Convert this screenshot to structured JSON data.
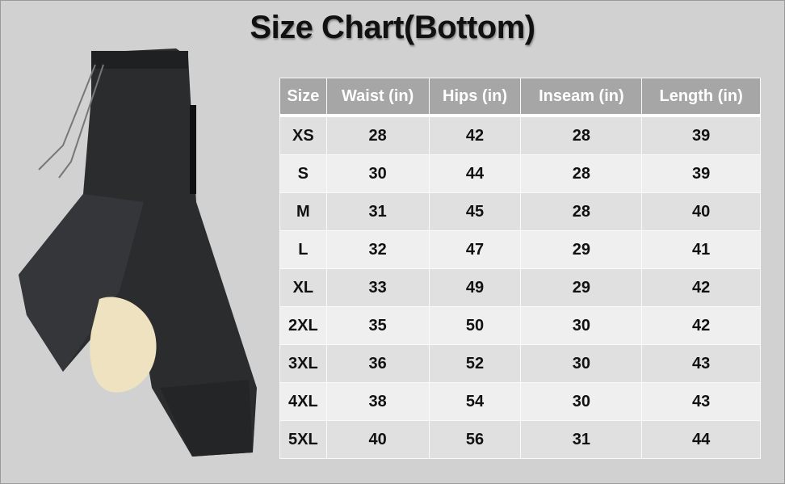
{
  "title": "Size Chart(Bottom)",
  "table": {
    "headers": [
      "Size",
      "Waist (in)",
      "Hips (in)",
      "Inseam (in)",
      "Length (in)"
    ],
    "rows": [
      [
        "XS",
        "28",
        "42",
        "28",
        "39"
      ],
      [
        "S",
        "30",
        "44",
        "28",
        "39"
      ],
      [
        "M",
        "31",
        "45",
        "28",
        "40"
      ],
      [
        "L",
        "32",
        "47",
        "29",
        "41"
      ],
      [
        "XL",
        "33",
        "49",
        "29",
        "42"
      ],
      [
        "2XL",
        "35",
        "50",
        "30",
        "42"
      ],
      [
        "3XL",
        "36",
        "52",
        "30",
        "43"
      ],
      [
        "4XL",
        "38",
        "54",
        "30",
        "43"
      ],
      [
        "5XL",
        "40",
        "56",
        "31",
        "44"
      ]
    ]
  },
  "colors": {
    "background": "#d1d1d1",
    "header": "#a6a6a6",
    "row_dark": "#e0e0e0",
    "row_light": "#efefef"
  },
  "image": {
    "subject": "fleece-lined-jogger-pants-photo"
  }
}
